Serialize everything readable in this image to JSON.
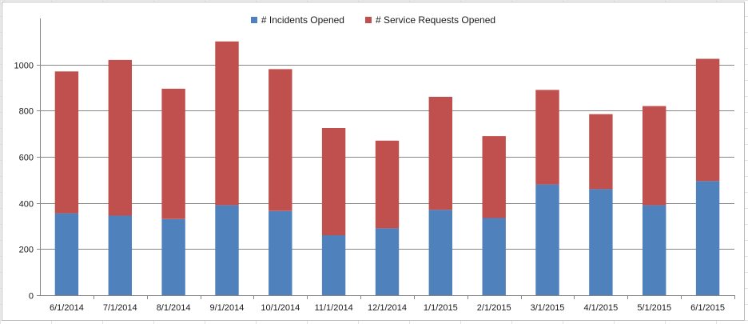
{
  "chart_data": {
    "type": "bar",
    "stacked": true,
    "categories": [
      "6/1/2014",
      "7/1/2014",
      "8/1/2014",
      "9/1/2014",
      "10/1/2014",
      "11/1/2014",
      "12/1/2014",
      "1/1/2015",
      "2/1/2015",
      "3/1/2015",
      "4/1/2015",
      "5/1/2015",
      "6/1/2015"
    ],
    "series": [
      {
        "name": "# Incidents Opened",
        "color": "#4f81bd",
        "values": [
          355,
          345,
          330,
          390,
          365,
          260,
          290,
          370,
          335,
          480,
          460,
          390,
          495
        ]
      },
      {
        "name": "# Service Requests Opened",
        "color": "#c0504d",
        "values": [
          615,
          675,
          565,
          710,
          615,
          465,
          380,
          490,
          355,
          410,
          325,
          430,
          530
        ]
      }
    ],
    "ylim": [
      0,
      1200
    ],
    "yticks": [
      0,
      200,
      400,
      600,
      800,
      1000
    ],
    "grid": true,
    "legend_position": "top"
  }
}
